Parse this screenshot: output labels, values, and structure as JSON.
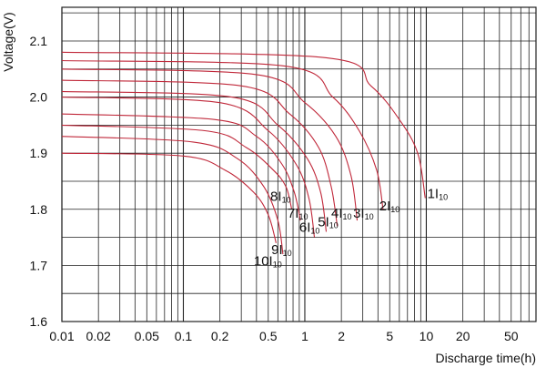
{
  "chart_data": {
    "type": "line",
    "title": "",
    "xlabel": "Discharge time(h)",
    "ylabel": "Voltage(V)",
    "x_scale": "log",
    "xlim": [
      0.01,
      80
    ],
    "ylim": [
      1.6,
      2.16
    ],
    "grid": true,
    "legend": "none",
    "x_tick_labels": [
      "0.01",
      "0.02",
      "0.05",
      "0.1",
      "0.2",
      "0.5",
      "1",
      "2",
      "5",
      "10",
      "20",
      "50"
    ],
    "y_tick_labels": [
      "1.6",
      "1.7",
      "1.8",
      "1.9",
      "2.0",
      "2.1"
    ],
    "curve_color": "#c0283a",
    "grid_color": "#222222",
    "series": [
      {
        "name": "1I10",
        "label_main": "1I",
        "label_sub": "10",
        "start_v": 2.08,
        "end_v": 1.82,
        "end_t": 9.8,
        "points": [
          [
            0.01,
            2.08
          ],
          [
            1.5,
            2.07
          ],
          [
            3.5,
            2.02
          ],
          [
            6,
            1.96
          ],
          [
            8.5,
            1.9
          ],
          [
            9.8,
            1.82
          ]
        ]
      },
      {
        "name": "2I10",
        "label_main": "2I",
        "label_sub": "10",
        "start_v": 2.065,
        "end_v": 1.8,
        "end_t": 4.4,
        "points": [
          [
            0.01,
            2.065
          ],
          [
            0.7,
            2.055
          ],
          [
            1.7,
            2.0
          ],
          [
            2.8,
            1.94
          ],
          [
            3.9,
            1.87
          ],
          [
            4.4,
            1.8
          ]
        ]
      },
      {
        "name": "3I10",
        "label_main": "3I",
        "label_sub": "10",
        "start_v": 2.05,
        "end_v": 1.78,
        "end_t": 2.7,
        "points": [
          [
            0.01,
            2.05
          ],
          [
            0.4,
            2.04
          ],
          [
            1.0,
            1.99
          ],
          [
            1.8,
            1.93
          ],
          [
            2.4,
            1.86
          ],
          [
            2.7,
            1.78
          ]
        ]
      },
      {
        "name": "4I10",
        "label_main": "4I",
        "label_sub": "10",
        "start_v": 2.03,
        "end_v": 1.77,
        "end_t": 1.85,
        "points": [
          [
            0.01,
            2.03
          ],
          [
            0.3,
            2.02
          ],
          [
            0.75,
            1.97
          ],
          [
            1.3,
            1.91
          ],
          [
            1.65,
            1.84
          ],
          [
            1.85,
            1.77
          ]
        ]
      },
      {
        "name": "5I10",
        "label_main": "5I",
        "label_sub": "10",
        "start_v": 2.01,
        "end_v": 1.76,
        "end_t": 1.5,
        "points": [
          [
            0.01,
            2.01
          ],
          [
            0.25,
            2.0
          ],
          [
            0.6,
            1.95
          ],
          [
            1.05,
            1.89
          ],
          [
            1.35,
            1.83
          ],
          [
            1.5,
            1.76
          ]
        ]
      },
      {
        "name": "6I10",
        "label_main": "6I",
        "label_sub": "10",
        "start_v": 2.0,
        "end_v": 1.75,
        "end_t": 1.2,
        "points": [
          [
            0.01,
            2.0
          ],
          [
            0.2,
            1.99
          ],
          [
            0.5,
            1.94
          ],
          [
            0.85,
            1.88
          ],
          [
            1.08,
            1.82
          ],
          [
            1.2,
            1.75
          ]
        ]
      },
      {
        "name": "7I10",
        "label_main": "7I",
        "label_sub": "10",
        "start_v": 1.97,
        "end_v": 1.78,
        "end_t": 0.92,
        "points": [
          [
            0.01,
            1.97
          ],
          [
            0.18,
            1.96
          ],
          [
            0.4,
            1.93
          ],
          [
            0.65,
            1.88
          ],
          [
            0.82,
            1.83
          ],
          [
            0.92,
            1.78
          ]
        ]
      },
      {
        "name": "8I10",
        "label_main": "8I",
        "label_sub": "10",
        "start_v": 1.95,
        "end_v": 1.8,
        "end_t": 0.78,
        "points": [
          [
            0.01,
            1.95
          ],
          [
            0.15,
            1.94
          ],
          [
            0.33,
            1.91
          ],
          [
            0.55,
            1.87
          ],
          [
            0.7,
            1.84
          ],
          [
            0.78,
            1.8
          ]
        ]
      },
      {
        "name": "9I10",
        "label_main": "9I",
        "label_sub": "10",
        "start_v": 1.93,
        "end_v": 1.72,
        "end_t": 0.66,
        "points": [
          [
            0.01,
            1.93
          ],
          [
            0.12,
            1.92
          ],
          [
            0.28,
            1.89
          ],
          [
            0.46,
            1.84
          ],
          [
            0.6,
            1.78
          ],
          [
            0.66,
            1.72
          ]
        ]
      },
      {
        "name": "10I10",
        "label_main": "10I",
        "label_sub": "10",
        "start_v": 1.9,
        "end_v": 1.74,
        "end_t": 0.58,
        "points": [
          [
            0.01,
            1.9
          ],
          [
            0.1,
            1.895
          ],
          [
            0.22,
            1.87
          ],
          [
            0.38,
            1.83
          ],
          [
            0.5,
            1.79
          ],
          [
            0.58,
            1.74
          ]
        ]
      }
    ],
    "label_positions": [
      {
        "series": "1I10",
        "t": 10.2,
        "v": 1.82
      },
      {
        "series": "2I10",
        "t": 4.1,
        "v": 1.798
      },
      {
        "series": "3I10",
        "t": 2.5,
        "v": 1.785
      },
      {
        "series": "4I10",
        "t": 1.65,
        "v": 1.785
      },
      {
        "series": "5I10",
        "t": 1.28,
        "v": 1.77
      },
      {
        "series": "6I10",
        "t": 0.9,
        "v": 1.76
      },
      {
        "series": "7I10",
        "t": 0.72,
        "v": 1.785
      },
      {
        "series": "8I10",
        "t": 0.52,
        "v": 1.815
      },
      {
        "series": "9I10",
        "t": 0.53,
        "v": 1.72
      },
      {
        "series": "10I10",
        "t": 0.38,
        "v": 1.7
      }
    ]
  }
}
